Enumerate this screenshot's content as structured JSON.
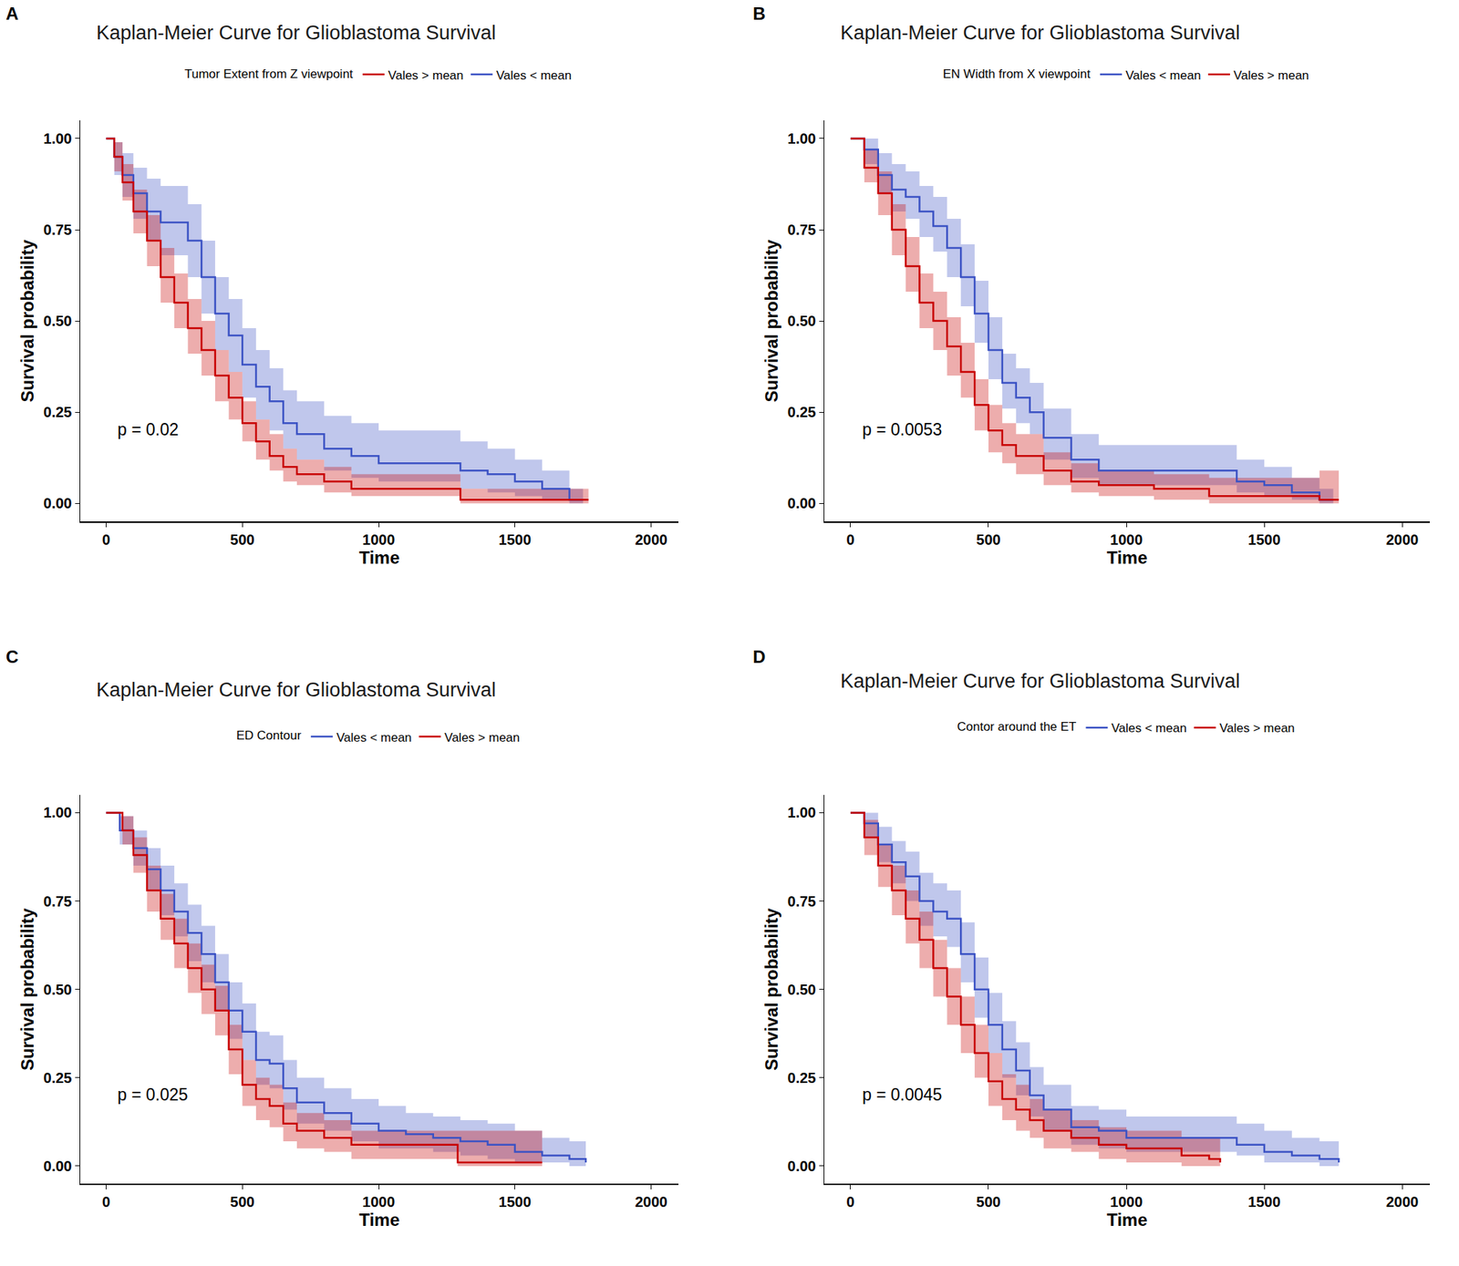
{
  "chart_data": [
    {
      "panel": "A",
      "type": "line",
      "line_style": "step",
      "grid": false,
      "legend": "top",
      "title": "Kaplan-Meier Curve for Glioblastoma Survival",
      "legend_title": "Tumor Extent from Z viewpoint",
      "annotation": "p = 0.02",
      "x_label": "Time",
      "y_label": "Survival probability",
      "xlim": [
        -95,
        2100
      ],
      "ylim": [
        -0.05,
        1.05
      ],
      "xticks": [
        0,
        500,
        1000,
        1500,
        2000
      ],
      "yticks": [
        {
          "value": 0,
          "label": "0.00"
        },
        {
          "value": 0.25,
          "label": "0.25"
        },
        {
          "value": 0.5,
          "label": "0.50"
        },
        {
          "value": 0.75,
          "label": "0.75"
        },
        {
          "value": 1,
          "label": "1.00"
        }
      ],
      "series": [
        {
          "name": "Vales < mean",
          "color": "#3b52c4",
          "x": [
            0,
            30,
            60,
            100,
            150,
            200,
            250,
            300,
            350,
            400,
            450,
            500,
            550,
            600,
            650,
            700,
            800,
            900,
            1000,
            1100,
            1200,
            1300,
            1400,
            1500,
            1600,
            1700,
            1750
          ],
          "values": [
            1,
            0.95,
            0.9,
            0.85,
            0.8,
            0.77,
            0.77,
            0.72,
            0.62,
            0.52,
            0.46,
            0.38,
            0.32,
            0.28,
            0.22,
            0.19,
            0.15,
            0.13,
            0.11,
            0.11,
            0.11,
            0.09,
            0.08,
            0.06,
            0.04,
            0.01,
            0.01
          ],
          "lower": [
            1,
            0.9,
            0.84,
            0.78,
            0.72,
            0.68,
            0.68,
            0.62,
            0.52,
            0.42,
            0.36,
            0.29,
            0.23,
            0.2,
            0.15,
            0.12,
            0.09,
            0.07,
            0.06,
            0.06,
            0.06,
            0.04,
            0.03,
            0.02,
            0.01,
            0,
            0
          ],
          "upper": [
            1,
            0.99,
            0.96,
            0.92,
            0.89,
            0.87,
            0.87,
            0.82,
            0.72,
            0.62,
            0.56,
            0.48,
            0.42,
            0.37,
            0.31,
            0.28,
            0.24,
            0.22,
            0.2,
            0.2,
            0.2,
            0.17,
            0.15,
            0.12,
            0.09,
            0.04,
            0.04
          ]
        },
        {
          "name": "Vales > mean",
          "color": "#c80000",
          "x": [
            0,
            30,
            60,
            100,
            150,
            200,
            250,
            300,
            350,
            400,
            450,
            500,
            550,
            600,
            650,
            700,
            800,
            900,
            1000,
            1100,
            1300,
            1500,
            1770
          ],
          "values": [
            1,
            0.95,
            0.88,
            0.8,
            0.72,
            0.62,
            0.55,
            0.48,
            0.42,
            0.35,
            0.29,
            0.22,
            0.17,
            0.13,
            0.1,
            0.08,
            0.06,
            0.04,
            0.04,
            0.04,
            0.01,
            0.01,
            0.01
          ],
          "lower": [
            1,
            0.91,
            0.83,
            0.74,
            0.65,
            0.55,
            0.48,
            0.41,
            0.35,
            0.28,
            0.23,
            0.17,
            0.12,
            0.09,
            0.06,
            0.05,
            0.03,
            0.02,
            0.02,
            0.02,
            0,
            0,
            0
          ],
          "upper": [
            1,
            0.99,
            0.93,
            0.86,
            0.79,
            0.7,
            0.63,
            0.56,
            0.5,
            0.42,
            0.36,
            0.28,
            0.23,
            0.19,
            0.15,
            0.12,
            0.1,
            0.08,
            0.08,
            0.08,
            0.04,
            0.04,
            0.04
          ]
        }
      ]
    },
    {
      "panel": "B",
      "type": "line",
      "line_style": "step",
      "grid": false,
      "legend": "top",
      "title": "Kaplan-Meier Curve for Glioblastoma Survival",
      "legend_title": "EN Width from X viewpoint",
      "annotation": "p = 0.0053",
      "x_label": "Time",
      "y_label": "Survival probability",
      "xlim": [
        -95,
        2100
      ],
      "ylim": [
        -0.05,
        1.05
      ],
      "xticks": [
        0,
        500,
        1000,
        1500,
        2000
      ],
      "yticks": [
        {
          "value": 0,
          "label": "0.00"
        },
        {
          "value": 0.25,
          "label": "0.25"
        },
        {
          "value": 0.5,
          "label": "0.50"
        },
        {
          "value": 0.75,
          "label": "0.75"
        },
        {
          "value": 1,
          "label": "1.00"
        }
      ],
      "series": [
        {
          "name": "Vales < mean",
          "color": "#3b52c4",
          "x": [
            0,
            50,
            100,
            150,
            200,
            250,
            300,
            350,
            400,
            450,
            500,
            550,
            600,
            650,
            700,
            800,
            900,
            1000,
            1200,
            1300,
            1400,
            1500,
            1600,
            1700,
            1750
          ],
          "values": [
            1,
            0.97,
            0.9,
            0.86,
            0.84,
            0.8,
            0.76,
            0.7,
            0.62,
            0.52,
            0.42,
            0.33,
            0.29,
            0.25,
            0.18,
            0.12,
            0.09,
            0.09,
            0.09,
            0.09,
            0.06,
            0.05,
            0.03,
            0.01,
            0.01
          ],
          "lower": [
            1,
            0.93,
            0.85,
            0.8,
            0.78,
            0.73,
            0.69,
            0.62,
            0.54,
            0.44,
            0.34,
            0.26,
            0.22,
            0.19,
            0.12,
            0.07,
            0.05,
            0.05,
            0.05,
            0.05,
            0.03,
            0.02,
            0.01,
            0,
            0
          ],
          "upper": [
            1,
            1,
            0.96,
            0.93,
            0.91,
            0.87,
            0.84,
            0.78,
            0.71,
            0.61,
            0.51,
            0.41,
            0.37,
            0.33,
            0.26,
            0.19,
            0.16,
            0.16,
            0.16,
            0.16,
            0.12,
            0.1,
            0.07,
            0.04,
            0.04
          ]
        },
        {
          "name": "Vales > mean",
          "color": "#c80000",
          "x": [
            0,
            50,
            100,
            150,
            200,
            250,
            300,
            350,
            400,
            450,
            500,
            550,
            600,
            700,
            800,
            900,
            1000,
            1100,
            1200,
            1300,
            1400,
            1500,
            1600,
            1700,
            1770
          ],
          "values": [
            1,
            0.92,
            0.85,
            0.75,
            0.65,
            0.55,
            0.5,
            0.43,
            0.36,
            0.27,
            0.2,
            0.16,
            0.13,
            0.09,
            0.06,
            0.05,
            0.05,
            0.04,
            0.04,
            0.02,
            0.02,
            0.02,
            0.02,
            0.01,
            0.01
          ],
          "lower": [
            1,
            0.88,
            0.79,
            0.68,
            0.58,
            0.48,
            0.42,
            0.35,
            0.29,
            0.2,
            0.14,
            0.11,
            0.08,
            0.05,
            0.03,
            0.02,
            0.02,
            0.01,
            0.01,
            0,
            0,
            0,
            0,
            0,
            0
          ],
          "upper": [
            1,
            0.97,
            0.91,
            0.82,
            0.73,
            0.63,
            0.58,
            0.51,
            0.44,
            0.34,
            0.27,
            0.22,
            0.19,
            0.14,
            0.11,
            0.09,
            0.09,
            0.08,
            0.08,
            0.07,
            0.07,
            0.07,
            0.07,
            0.09,
            0.09
          ]
        }
      ]
    },
    {
      "panel": "C",
      "type": "line",
      "line_style": "step",
      "grid": false,
      "legend": "top",
      "title": "Kaplan-Meier Curve for Glioblastoma Survival",
      "legend_title": "ED Contour",
      "annotation": "p = 0.025",
      "x_label": "Time",
      "y_label": "Survival probability",
      "xlim": [
        -95,
        2100
      ],
      "ylim": [
        -0.05,
        1.05
      ],
      "xticks": [
        0,
        500,
        1000,
        1500,
        2000
      ],
      "yticks": [
        {
          "value": 0,
          "label": "0.00"
        },
        {
          "value": 0.25,
          "label": "0.25"
        },
        {
          "value": 0.5,
          "label": "0.50"
        },
        {
          "value": 0.75,
          "label": "0.75"
        },
        {
          "value": 1,
          "label": "1.00"
        }
      ],
      "series": [
        {
          "name": "Vales < mean",
          "color": "#3b52c4",
          "x": [
            0,
            50,
            100,
            150,
            200,
            250,
            300,
            350,
            400,
            450,
            500,
            550,
            600,
            650,
            700,
            800,
            900,
            1000,
            1100,
            1200,
            1300,
            1400,
            1500,
            1600,
            1700,
            1760
          ],
          "values": [
            1,
            0.95,
            0.9,
            0.84,
            0.78,
            0.72,
            0.66,
            0.6,
            0.52,
            0.44,
            0.38,
            0.3,
            0.29,
            0.22,
            0.18,
            0.15,
            0.12,
            0.1,
            0.09,
            0.08,
            0.07,
            0.06,
            0.04,
            0.03,
            0.02,
            0.01
          ],
          "lower": [
            1,
            0.91,
            0.85,
            0.78,
            0.71,
            0.65,
            0.58,
            0.52,
            0.44,
            0.36,
            0.3,
            0.23,
            0.22,
            0.16,
            0.12,
            0.1,
            0.07,
            0.05,
            0.05,
            0.04,
            0.03,
            0.02,
            0.01,
            0.01,
            0,
            0
          ],
          "upper": [
            1,
            0.99,
            0.95,
            0.9,
            0.85,
            0.8,
            0.74,
            0.68,
            0.6,
            0.52,
            0.46,
            0.38,
            0.37,
            0.3,
            0.25,
            0.22,
            0.19,
            0.17,
            0.15,
            0.14,
            0.13,
            0.12,
            0.1,
            0.08,
            0.07,
            0.07
          ]
        },
        {
          "name": "Vales > mean",
          "color": "#c80000",
          "x": [
            0,
            30,
            60,
            100,
            150,
            200,
            250,
            300,
            350,
            400,
            450,
            500,
            550,
            600,
            650,
            700,
            800,
            900,
            1000,
            1100,
            1200,
            1290,
            1400,
            1500,
            1600
          ],
          "values": [
            1,
            1,
            0.95,
            0.88,
            0.78,
            0.7,
            0.63,
            0.56,
            0.5,
            0.44,
            0.33,
            0.23,
            0.19,
            0.17,
            0.12,
            0.1,
            0.08,
            0.06,
            0.06,
            0.06,
            0.06,
            0.01,
            0.01,
            0.01,
            0.01
          ],
          "lower": [
            1,
            1,
            0.91,
            0.83,
            0.72,
            0.64,
            0.56,
            0.49,
            0.43,
            0.37,
            0.26,
            0.17,
            0.13,
            0.11,
            0.07,
            0.05,
            0.04,
            0.02,
            0.02,
            0.02,
            0.02,
            0,
            0,
            0,
            0
          ],
          "upper": [
            1,
            1,
            0.99,
            0.93,
            0.85,
            0.77,
            0.7,
            0.63,
            0.57,
            0.51,
            0.4,
            0.3,
            0.25,
            0.23,
            0.18,
            0.15,
            0.13,
            0.1,
            0.1,
            0.1,
            0.1,
            0.1,
            0.1,
            0.1,
            0.1
          ]
        }
      ]
    },
    {
      "panel": "D",
      "type": "line",
      "line_style": "step",
      "grid": false,
      "legend": "top",
      "title": "Kaplan-Meier Curve for Glioblastoma Survival",
      "legend_title": "Contor around the ET",
      "annotation": "p = 0.0045",
      "x_label": "Time",
      "y_label": "Survival probability",
      "xlim": [
        -95,
        2100
      ],
      "ylim": [
        -0.05,
        1.05
      ],
      "xticks": [
        0,
        500,
        1000,
        1500,
        2000
      ],
      "yticks": [
        {
          "value": 0,
          "label": "0.00"
        },
        {
          "value": 0.25,
          "label": "0.25"
        },
        {
          "value": 0.5,
          "label": "0.50"
        },
        {
          "value": 0.75,
          "label": "0.75"
        },
        {
          "value": 1,
          "label": "1.00"
        }
      ],
      "series": [
        {
          "name": "Vales < mean",
          "color": "#3b52c4",
          "x": [
            0,
            50,
            100,
            150,
            200,
            250,
            300,
            350,
            400,
            450,
            500,
            550,
            600,
            650,
            700,
            800,
            900,
            1000,
            1100,
            1200,
            1300,
            1400,
            1500,
            1600,
            1700,
            1770
          ],
          "values": [
            1,
            0.97,
            0.91,
            0.86,
            0.82,
            0.75,
            0.72,
            0.7,
            0.6,
            0.5,
            0.4,
            0.33,
            0.27,
            0.2,
            0.16,
            0.11,
            0.1,
            0.08,
            0.08,
            0.08,
            0.08,
            0.06,
            0.04,
            0.03,
            0.02,
            0.01
          ],
          "lower": [
            1,
            0.93,
            0.86,
            0.8,
            0.75,
            0.68,
            0.65,
            0.62,
            0.52,
            0.42,
            0.32,
            0.25,
            0.2,
            0.14,
            0.1,
            0.06,
            0.05,
            0.04,
            0.04,
            0.04,
            0.04,
            0.03,
            0.01,
            0.01,
            0,
            0
          ],
          "upper": [
            1,
            1,
            0.96,
            0.92,
            0.89,
            0.83,
            0.8,
            0.78,
            0.69,
            0.59,
            0.49,
            0.41,
            0.35,
            0.28,
            0.23,
            0.17,
            0.16,
            0.14,
            0.14,
            0.14,
            0.14,
            0.12,
            0.1,
            0.08,
            0.07,
            0.07
          ]
        },
        {
          "name": "Vales > mean",
          "color": "#c80000",
          "x": [
            0,
            50,
            100,
            150,
            200,
            250,
            300,
            350,
            400,
            450,
            500,
            550,
            600,
            650,
            700,
            800,
            900,
            1000,
            1100,
            1200,
            1300,
            1340
          ],
          "values": [
            1,
            0.93,
            0.85,
            0.78,
            0.7,
            0.64,
            0.56,
            0.48,
            0.4,
            0.32,
            0.24,
            0.19,
            0.16,
            0.13,
            0.1,
            0.08,
            0.06,
            0.05,
            0.05,
            0.03,
            0.02,
            0.01
          ],
          "lower": [
            1,
            0.88,
            0.79,
            0.71,
            0.63,
            0.56,
            0.48,
            0.4,
            0.32,
            0.25,
            0.17,
            0.13,
            0.1,
            0.08,
            0.05,
            0.04,
            0.02,
            0.01,
            0.01,
            0,
            0,
            0
          ],
          "upper": [
            1,
            0.98,
            0.91,
            0.85,
            0.78,
            0.72,
            0.64,
            0.56,
            0.48,
            0.4,
            0.32,
            0.26,
            0.23,
            0.19,
            0.16,
            0.13,
            0.11,
            0.1,
            0.1,
            0.08,
            0.08,
            0.08
          ]
        }
      ]
    }
  ]
}
